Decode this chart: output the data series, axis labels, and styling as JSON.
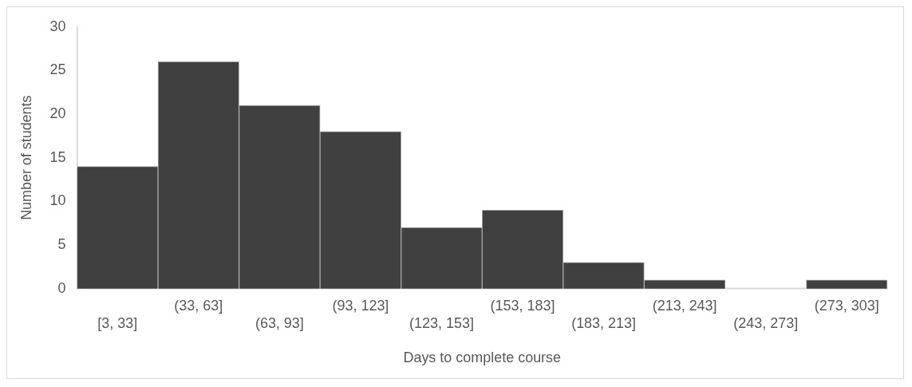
{
  "chart_data": {
    "type": "bar",
    "xlabel": "Days to complete course",
    "ylabel": "Number of students",
    "categories": [
      "[3, 33]",
      "(33, 63]",
      "(63, 93]",
      "(93, 123]",
      "(123, 153]",
      "(153, 183]",
      "(183, 213]",
      "(213, 243]",
      "(243, 273]",
      "(273, 303]"
    ],
    "values": [
      14,
      26,
      21,
      18,
      7,
      9,
      3,
      1,
      0,
      1
    ],
    "color": "#404040",
    "ylim": [
      0,
      30
    ],
    "yticks": [
      0,
      5,
      10,
      15,
      20,
      25,
      30
    ],
    "grid": false,
    "legend": false
  }
}
